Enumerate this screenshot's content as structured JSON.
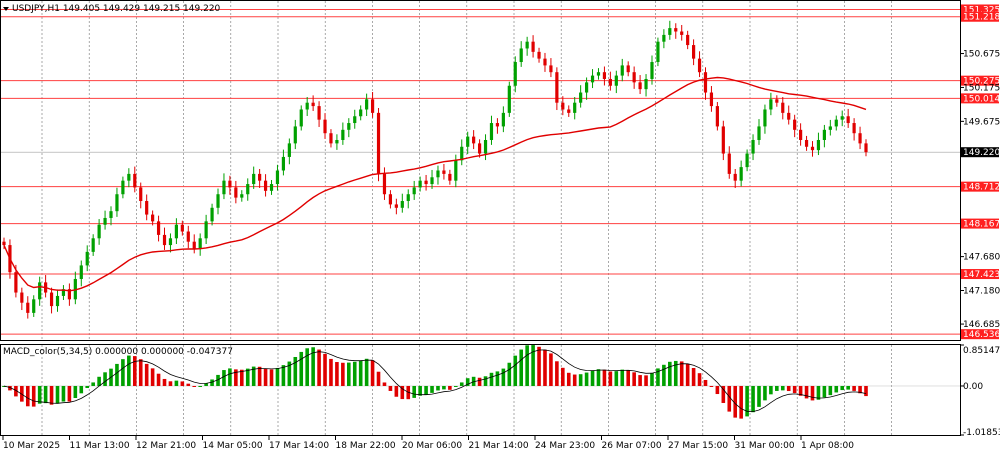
{
  "chart_data": [
    {
      "type": "candlestick",
      "title": "USDJPY,H1  149.405 149.429 149.215 149.220",
      "symbol": "USDJPY,H1",
      "ohlc_last": [
        "149.405",
        "149.429",
        "149.215",
        "149.220"
      ],
      "ylim": [
        146.45,
        151.45
      ],
      "y_tick_labels": [
        "150.675",
        "150.175",
        "149.675",
        "147.680",
        "147.180",
        "146.685"
      ],
      "current_price": "149.220",
      "horizontal_levels": [
        "151.325",
        "151.218",
        "150.275",
        "150.014",
        "148.712",
        "148.167",
        "147.423",
        "146.536"
      ],
      "colors": {
        "bull": "#00a000",
        "bear": "#e00000",
        "ma": "#e00000",
        "level": "#ff4040",
        "current": "#000000"
      },
      "close": [
        147.85,
        147.45,
        147.15,
        147.0,
        146.85,
        147.05,
        147.3,
        147.15,
        146.95,
        147.1,
        147.2,
        147.05,
        147.35,
        147.55,
        147.75,
        147.95,
        148.15,
        148.25,
        148.35,
        148.6,
        148.8,
        148.9,
        148.7,
        148.5,
        148.3,
        148.2,
        148.0,
        147.85,
        147.95,
        148.15,
        148.05,
        147.9,
        147.8,
        147.95,
        148.2,
        148.4,
        148.6,
        148.8,
        148.7,
        148.55,
        148.6,
        148.75,
        148.9,
        148.8,
        148.65,
        148.75,
        148.95,
        149.15,
        149.35,
        149.6,
        149.85,
        149.95,
        149.9,
        149.7,
        149.5,
        149.35,
        149.4,
        149.55,
        149.65,
        149.75,
        149.85,
        150.0,
        149.8,
        148.9,
        148.6,
        148.45,
        148.4,
        148.5,
        148.6,
        148.7,
        148.8,
        148.75,
        148.85,
        148.95,
        148.9,
        148.8,
        149.1,
        149.3,
        149.45,
        149.35,
        149.2,
        149.4,
        149.65,
        149.6,
        149.8,
        150.2,
        150.55,
        150.75,
        150.85,
        150.7,
        150.6,
        150.5,
        150.4,
        149.95,
        149.85,
        149.8,
        149.95,
        150.1,
        150.25,
        150.35,
        150.4,
        150.3,
        150.2,
        150.35,
        150.5,
        150.4,
        150.25,
        150.15,
        150.3,
        150.55,
        150.85,
        150.95,
        151.05,
        151.0,
        150.95,
        150.8,
        150.6,
        150.4,
        150.1,
        149.9,
        149.6,
        149.2,
        148.9,
        148.8,
        149.0,
        149.2,
        149.4,
        149.6,
        149.85,
        150.0,
        149.95,
        149.8,
        149.7,
        149.55,
        149.4,
        149.3,
        149.25,
        149.4,
        149.55,
        149.6,
        149.7,
        149.75,
        149.65,
        149.5,
        149.35,
        149.22
      ],
      "ma_period_note": "",
      "x_tick_labels": [
        "10 Mar 2025",
        "11 Mar 13:00",
        "12 Mar 21:00",
        "14 Mar 05:00",
        "17 Mar 14:00",
        "18 Mar 22:00",
        "20 Mar 06:00",
        "21 Mar 14:00",
        "24 Mar 23:00",
        "26 Mar 07:00",
        "27 Mar 15:00",
        "31 Mar 00:00",
        "1 Apr 08:00"
      ]
    },
    {
      "type": "histogram",
      "title": "MACD_color(5,34,5) 0.000000 0.000000 -0.047377",
      "ylim": [
        -1.018536,
        0.85147
      ],
      "y_tick_labels": [
        "0.85147",
        "0.00",
        "-1.018536"
      ],
      "colors": {
        "positive": "#00a000",
        "negative": "#e00000",
        "signal": "#000000"
      }
    }
  ]
}
